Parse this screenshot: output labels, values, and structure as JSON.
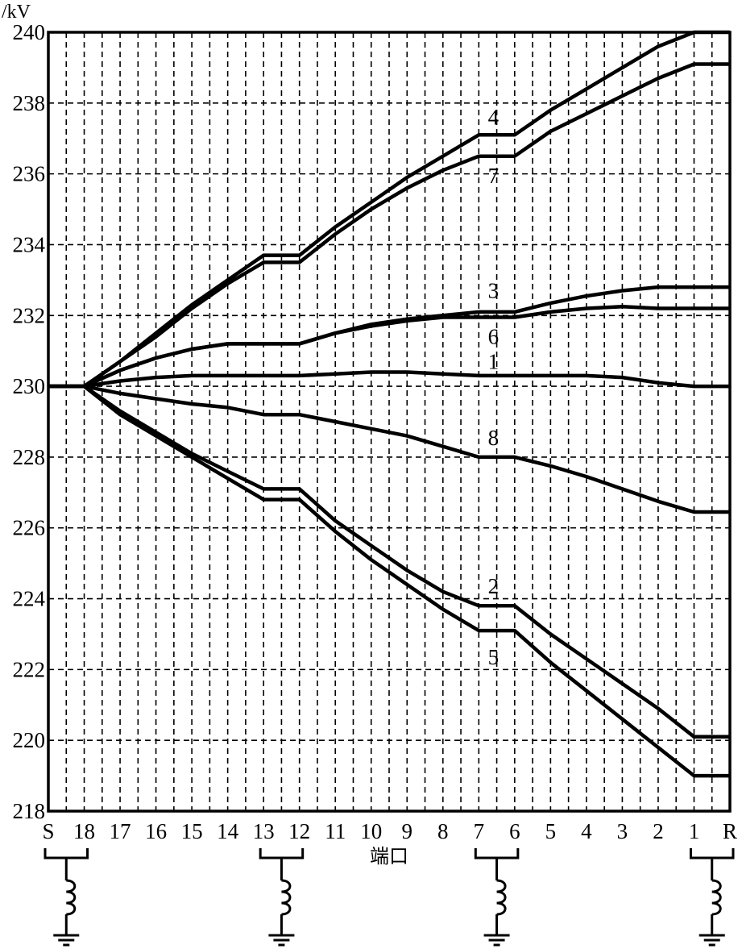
{
  "chart_data": {
    "type": "line",
    "ylabel": "/kV",
    "xlabel": "端口",
    "ylim": [
      218,
      240
    ],
    "yticks": [
      218,
      220,
      222,
      224,
      226,
      228,
      230,
      232,
      234,
      236,
      238,
      240
    ],
    "grid": true,
    "categories": [
      "S",
      "18",
      "17",
      "16",
      "15",
      "14",
      "13",
      "12",
      "11",
      "10",
      "9",
      "8",
      "7",
      "6",
      "5",
      "4",
      "3",
      "2",
      "1",
      "R"
    ],
    "reactor_ports": [
      "18",
      "13",
      "12",
      "7",
      "6",
      "1",
      "R"
    ],
    "series": [
      {
        "name": "1",
        "values": [
          230,
          230,
          230.15,
          230.25,
          230.3,
          230.3,
          230.3,
          230.3,
          230.35,
          230.4,
          230.4,
          230.35,
          230.3,
          230.3,
          230.3,
          230.3,
          230.25,
          230.1,
          230.0,
          230.0
        ]
      },
      {
        "name": "2",
        "values": [
          230,
          230,
          229.3,
          228.7,
          228.1,
          227.6,
          227.1,
          227.1,
          226.2,
          225.5,
          224.8,
          224.2,
          223.8,
          223.8,
          223.0,
          222.3,
          221.6,
          220.9,
          220.1,
          220.1
        ]
      },
      {
        "name": "3",
        "values": [
          230,
          230,
          230.45,
          230.8,
          231.05,
          231.2,
          231.2,
          231.2,
          231.5,
          231.75,
          231.9,
          232.0,
          232.1,
          232.1,
          232.35,
          232.55,
          232.7,
          232.8,
          232.8,
          232.8
        ]
      },
      {
        "name": "4",
        "values": [
          230,
          230,
          230.7,
          231.5,
          232.3,
          233.0,
          233.7,
          233.7,
          234.5,
          235.2,
          235.9,
          236.5,
          237.1,
          237.1,
          237.8,
          238.4,
          239.0,
          239.6,
          240.0,
          240.0
        ]
      },
      {
        "name": "5",
        "values": [
          230,
          230,
          229.2,
          228.6,
          228.0,
          227.4,
          226.8,
          226.8,
          225.9,
          225.1,
          224.4,
          223.7,
          223.1,
          223.1,
          222.2,
          221.4,
          220.6,
          219.8,
          219.0,
          219.0
        ]
      },
      {
        "name": "6",
        "values": [
          230,
          230,
          230.45,
          230.8,
          231.05,
          231.2,
          231.2,
          231.2,
          231.5,
          231.7,
          231.85,
          231.95,
          231.95,
          231.95,
          232.1,
          232.2,
          232.25,
          232.2,
          232.2,
          232.2
        ]
      },
      {
        "name": "7",
        "values": [
          230,
          230,
          230.7,
          231.4,
          232.2,
          232.9,
          233.5,
          233.5,
          234.3,
          235.0,
          235.6,
          236.1,
          236.5,
          236.5,
          237.2,
          237.7,
          238.2,
          238.7,
          239.1,
          239.1
        ]
      },
      {
        "name": "8",
        "values": [
          230,
          230,
          229.8,
          229.65,
          229.5,
          229.4,
          229.2,
          229.2,
          229.0,
          228.8,
          228.6,
          228.3,
          228.0,
          228.0,
          227.75,
          227.45,
          227.1,
          226.75,
          226.45,
          226.45
        ]
      }
    ],
    "series_label_positions": [
      {
        "name": "1",
        "category": "7",
        "value": 230.7
      },
      {
        "name": "2",
        "category": "7",
        "value": 224.35
      },
      {
        "name": "3",
        "category": "7",
        "value": 232.7
      },
      {
        "name": "4",
        "category": "7",
        "value": 237.6
      },
      {
        "name": "5",
        "category": "7",
        "value": 222.35
      },
      {
        "name": "6",
        "category": "7",
        "value": 231.4
      },
      {
        "name": "7",
        "category": "7",
        "value": 235.95
      },
      {
        "name": "8",
        "category": "7",
        "value": 228.55
      }
    ]
  }
}
